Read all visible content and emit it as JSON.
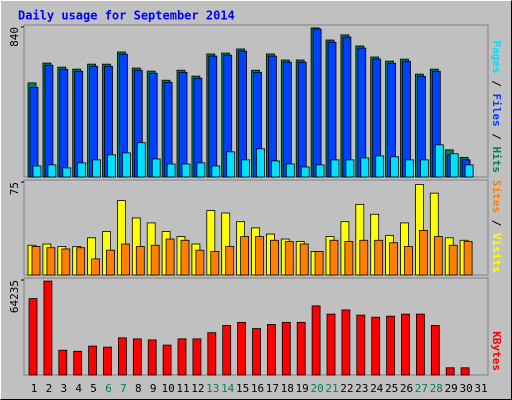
{
  "chart_data": [
    {
      "type": "bar",
      "title": "Daily usage for September 2014",
      "ylim": [
        0,
        840
      ],
      "yticks": [
        840
      ],
      "legend_separator": " / ",
      "series": [
        {
          "name": "Hits",
          "color": "#00805c",
          "values": [
            527,
            638,
            615,
            604,
            632,
            632,
            700,
            610,
            593,
            542,
            598,
            565,
            689,
            694,
            717,
            598,
            689,
            655,
            655,
            835,
            767,
            796,
            734,
            672,
            649,
            660,
            576,
            604,
            152,
            110,
            0
          ]
        },
        {
          "name": "Files",
          "color": "#0040ff",
          "values": [
            502,
            626,
            603,
            592,
            620,
            620,
            688,
            598,
            581,
            530,
            586,
            553,
            677,
            682,
            705,
            586,
            677,
            643,
            643,
            829,
            755,
            784,
            722,
            660,
            637,
            648,
            564,
            592,
            124,
            96,
            0
          ]
        },
        {
          "name": "Pages",
          "color": "#00e0ff",
          "values": [
            62,
            68,
            51,
            79,
            96,
            124,
            135,
            192,
            101,
            73,
            73,
            79,
            62,
            141,
            96,
            158,
            90,
            73,
            56,
            68,
            96,
            96,
            107,
            118,
            113,
            96,
            96,
            180,
            130,
            68,
            0
          ]
        }
      ]
    },
    {
      "type": "bar",
      "ylim": [
        0,
        75
      ],
      "yticks": [
        75
      ],
      "legend_separator": " / ",
      "series": [
        {
          "name": "Visits",
          "color": "#ffff00",
          "values": [
            24,
            25,
            23,
            23,
            30,
            35,
            60,
            46,
            42,
            35,
            31,
            25,
            52,
            50,
            43,
            38,
            33,
            29,
            27,
            19,
            31,
            43,
            57,
            49,
            32,
            42,
            73,
            66,
            30,
            28,
            0
          ]
        },
        {
          "name": "Sites",
          "color": "#ff8000",
          "values": [
            23,
            22,
            21,
            22,
            13,
            20,
            25,
            23,
            24,
            29,
            28,
            20,
            19,
            23,
            31,
            31,
            28,
            27,
            25,
            19,
            28,
            27,
            28,
            28,
            26,
            23,
            36,
            31,
            24,
            27,
            0
          ]
        }
      ]
    },
    {
      "type": "bar",
      "ylim": [
        0,
        64235
      ],
      "yticks": [
        64235
      ],
      "categories": [
        "1",
        "2",
        "3",
        "4",
        "5",
        "6",
        "7",
        "8",
        "9",
        "10",
        "11",
        "12",
        "13",
        "14",
        "15",
        "16",
        "17",
        "18",
        "19",
        "20",
        "21",
        "22",
        "23",
        "24",
        "25",
        "26",
        "27",
        "28",
        "29",
        "30",
        "31"
      ],
      "category_colors": [
        "#000000",
        "#000000",
        "#000000",
        "#000000",
        "#000000",
        "#00805c",
        "#00805c",
        "#000000",
        "#000000",
        "#000000",
        "#000000",
        "#000000",
        "#00805c",
        "#00805c",
        "#000000",
        "#000000",
        "#000000",
        "#000000",
        "#000000",
        "#00805c",
        "#00805c",
        "#000000",
        "#000000",
        "#000000",
        "#000000",
        "#000000",
        "#00805c",
        "#00805c",
        "#000000",
        "#000000",
        "#000000"
      ],
      "series": [
        {
          "name": "KBytes",
          "color": "#ff0000",
          "values": [
            51652,
            63518,
            16752,
            16054,
            19544,
            18846,
            25128,
            24430,
            23732,
            20242,
            24430,
            24430,
            28618,
            33504,
            35598,
            31410,
            34202,
            35598,
            35598,
            46766,
            41182,
            43974,
            40484,
            39088,
            39786,
            41182,
            41182,
            33504,
            4886,
            4886,
            0
          ]
        }
      ]
    }
  ]
}
